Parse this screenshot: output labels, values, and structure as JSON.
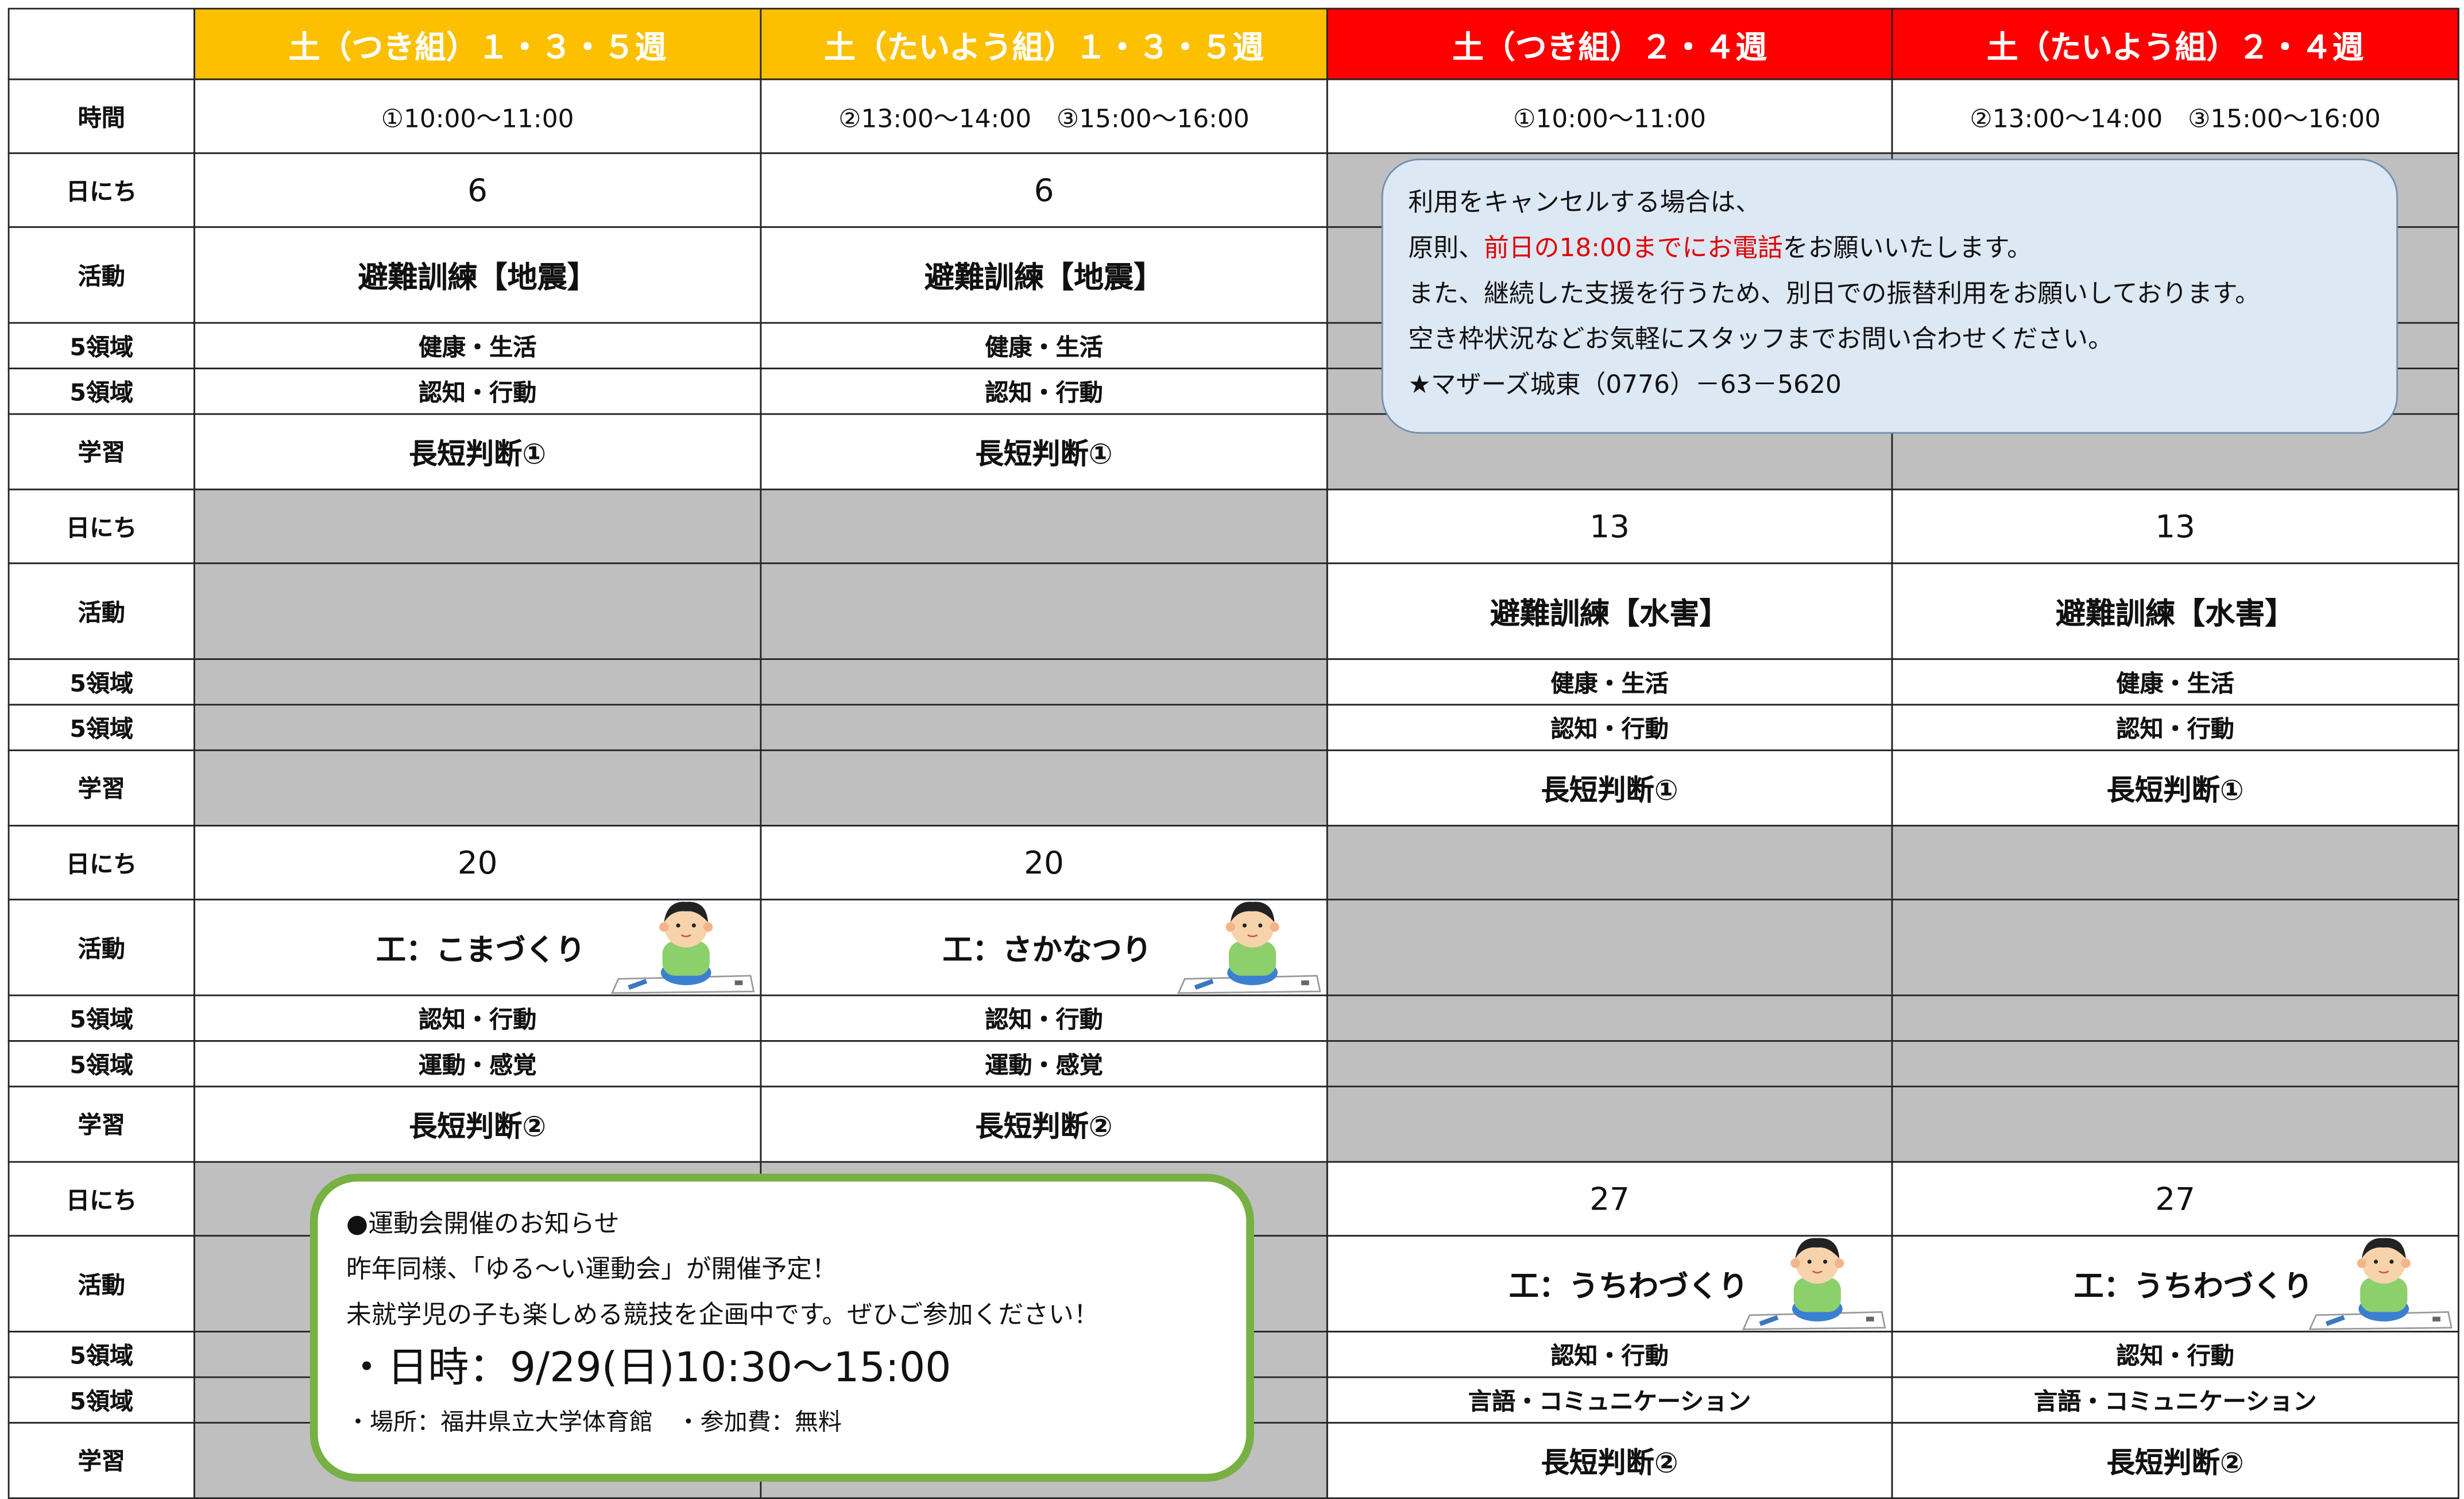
{
  "time_label": "時間",
  "row_labels": [
    "日にち",
    "活動",
    "5領域",
    "5領域",
    "学習"
  ],
  "columns": [
    {
      "name": "土（つき組）１・３・５週",
      "time": "①10:00～11:00",
      "color": "#fcc000"
    },
    {
      "name": "土（たいよう組）１・３・５週",
      "time": "②13:00～14:00　③15:00～16:00",
      "color": "#fcc000"
    },
    {
      "name": "土（つき組）２・４週",
      "time": "①10:00～11:00",
      "color": "#ff0000"
    },
    {
      "name": "土（たいよう組）２・４週",
      "time": "②13:00～14:00　③15:00～16:00",
      "color": "#ff0000"
    }
  ],
  "weeks": [
    {
      "cells": [
        {
          "date": "6",
          "activity": "避難訓練【地震】",
          "domain1": "健康・生活",
          "domain2": "認知・行動",
          "study": "長短判断①"
        },
        {
          "date": "6",
          "activity": "避難訓練【地震】",
          "domain1": "健康・生活",
          "domain2": "認知・行動",
          "study": "長短判断①"
        },
        null,
        null
      ]
    },
    {
      "cells": [
        null,
        null,
        {
          "date": "13",
          "activity": "避難訓練【水害】",
          "domain1": "健康・生活",
          "domain2": "認知・行動",
          "study": "長短判断①"
        },
        {
          "date": "13",
          "activity": "避難訓練【水害】",
          "domain1": "健康・生活",
          "domain2": "認知・行動",
          "study": "長短判断①"
        }
      ]
    },
    {
      "cells": [
        {
          "date": "20",
          "activity": "工：こまづくり",
          "domain1": "認知・行動",
          "domain2": "運動・感覚",
          "study": "長短判断②",
          "illustration": true
        },
        {
          "date": "20",
          "activity": "工：さかなつり",
          "domain1": "認知・行動",
          "domain2": "運動・感覚",
          "study": "長短判断②",
          "illustration": true
        },
        null,
        null
      ]
    },
    {
      "cells": [
        null,
        null,
        {
          "date": "27",
          "activity": "工：うちわづくり",
          "domain1": "認知・行動",
          "domain2": "言語・コミュニケーション",
          "study": "長短判断②",
          "illustration": true
        },
        {
          "date": "27",
          "activity": "工：うちわづくり",
          "domain1": "認知・行動",
          "domain2": "言語・コミュニケーション",
          "study": "長短判断②",
          "illustration": true
        }
      ]
    }
  ],
  "cancel_note": {
    "line1": "利用をキャンセルする場合は、",
    "line2_start": "原則、",
    "line2_red": "前日の18:00までにお電話",
    "line2_end": "をお願いいたします。",
    "line3": "また、継続した支援を行うため、別日での振替利用をお願いしております。",
    "line4": "空き枠状況などお気軽にスタッフまでお問い合わせください。",
    "line5": "★マザーズ城東（0776）－63－5620"
  },
  "event_notice": {
    "title": "●運動会開催のお知らせ",
    "line1": "昨年同様、「ゆる～い運動会」が開催予定！",
    "line2": "未就学児の子も楽しめる競技を企画中です。ぜひご参加ください！",
    "datetime": "・日時：9/29(日)10:30～15:00",
    "place": "・場所：福井県立大学体育館　・参加費：無料"
  }
}
